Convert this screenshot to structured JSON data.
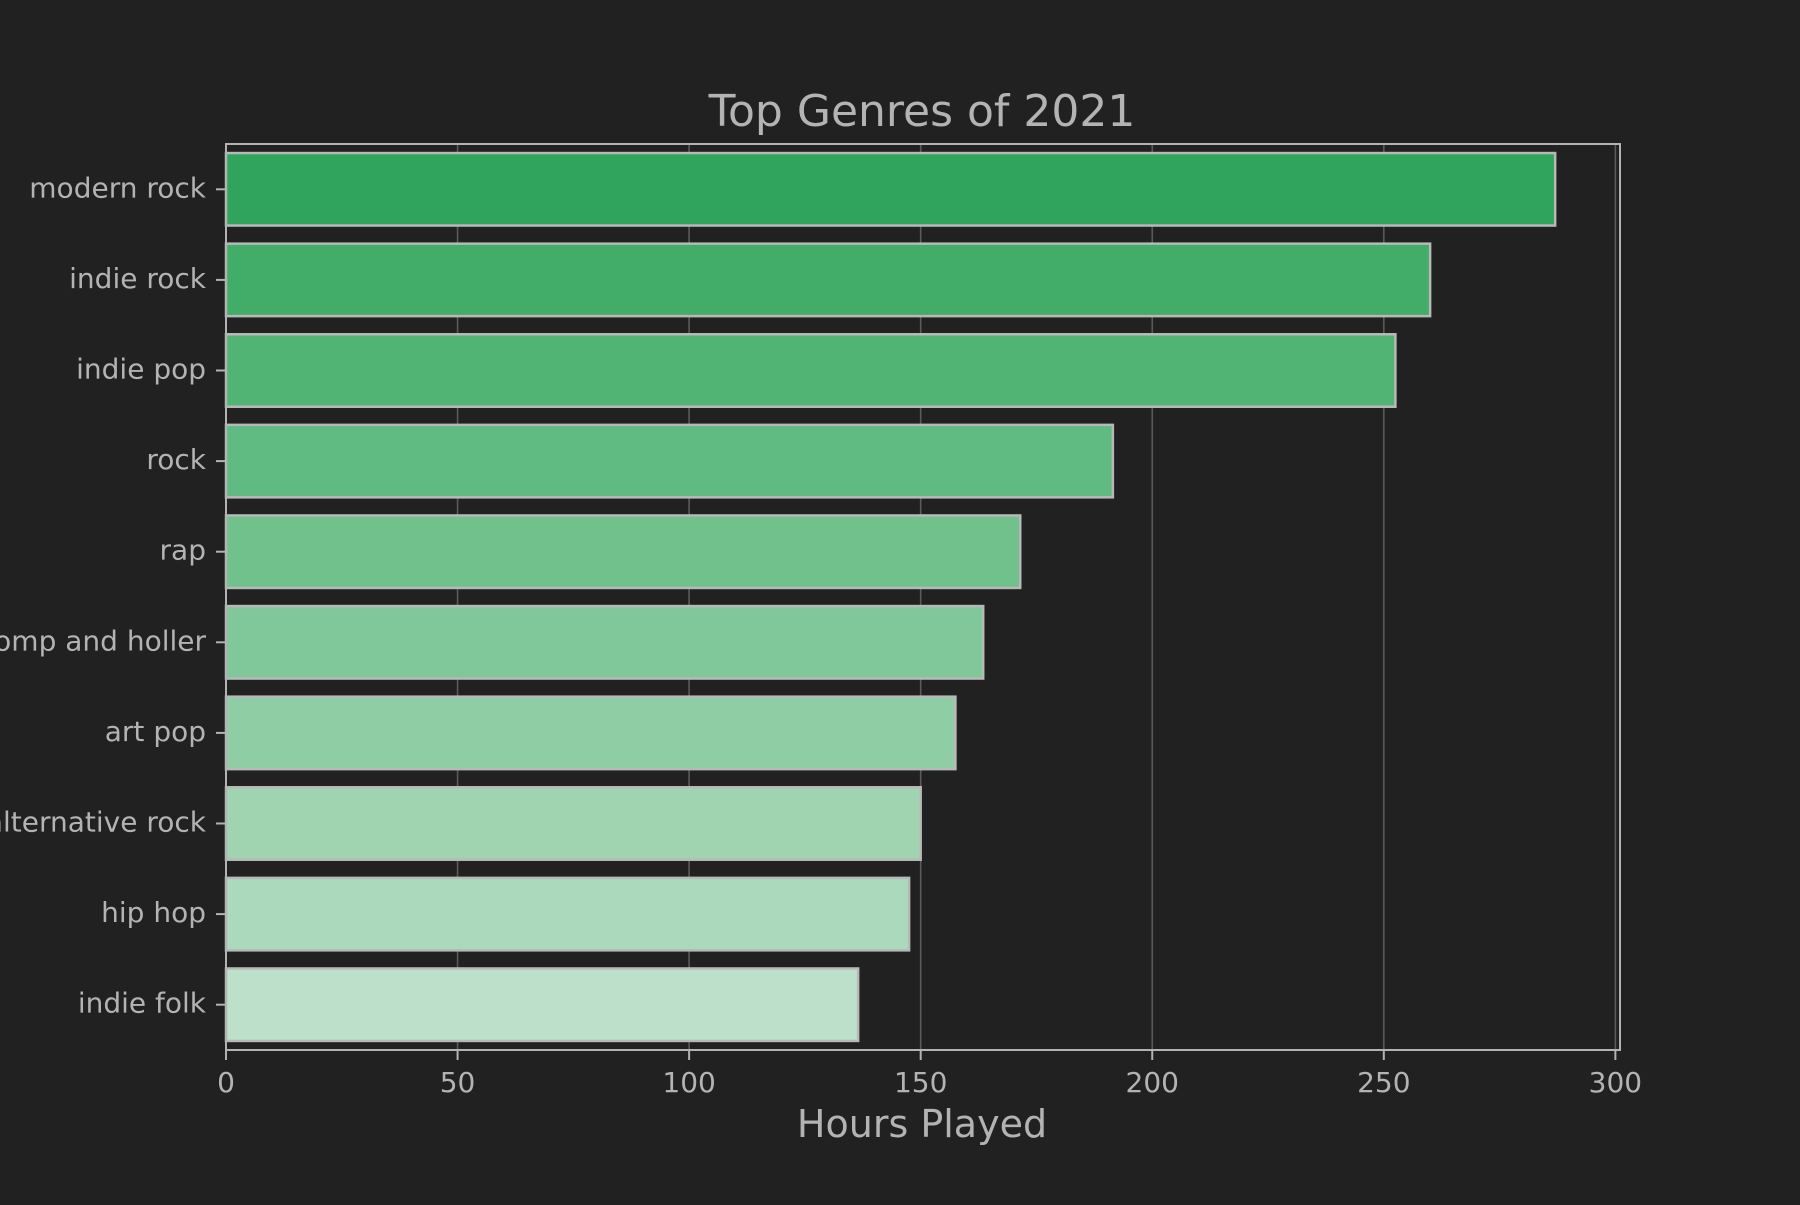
{
  "colors": {
    "background": "#212121",
    "text": "#b3b3b3",
    "axis": "#b3b3b3",
    "grid": "#5a5a5a",
    "bar_stroke": "#b8b8b8",
    "bar_fills": [
      "#30a45c",
      "#41ad68",
      "#51b474",
      "#5fbb82",
      "#70c18c",
      "#80c799",
      "#8fcea5",
      "#a0d4b1",
      "#abd9bb",
      "#bde0ca"
    ]
  },
  "chart_data": {
    "type": "bar",
    "orientation": "horizontal",
    "title": "Top Genres of 2021",
    "xlabel": "Hours Played",
    "ylabel": "",
    "categories": [
      "modern rock",
      "indie rock",
      "indie pop",
      "rock",
      "rap",
      "stomp and holler",
      "art pop",
      "alternative rock",
      "hip hop",
      "indie folk"
    ],
    "values": [
      287,
      260,
      252.5,
      191.5,
      171.5,
      163.5,
      157.5,
      150,
      147.5,
      136.5
    ],
    "xlim": [
      0,
      301
    ],
    "xticks": [
      0,
      50,
      100,
      150,
      200,
      250,
      300
    ],
    "grid": true
  }
}
